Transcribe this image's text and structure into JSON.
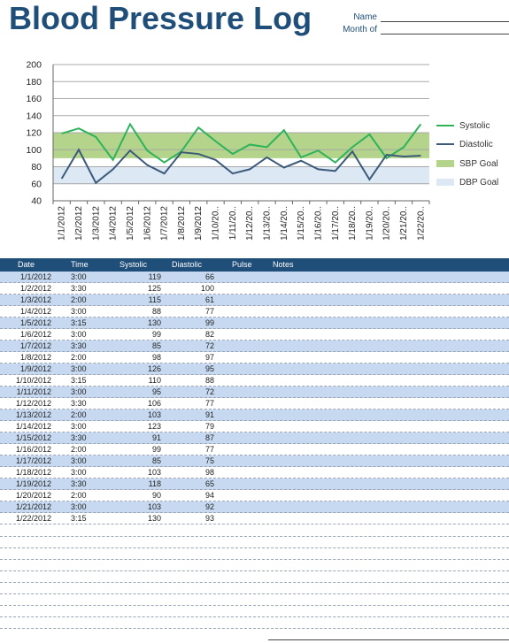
{
  "title": "Blood Pressure Log",
  "meta": {
    "name_label": "Name",
    "month_label": "Month of"
  },
  "colors": {
    "systolic": "#2fb35a",
    "diastolic": "#3d5a7a",
    "sbp_goal": "#b3d48a",
    "dbp_goal": "#dce9f5",
    "header": "#1f4e79",
    "row_shade": "#c6d9f1"
  },
  "table": {
    "headers": [
      "Date",
      "Time",
      "Systolic",
      "Diastolic",
      "Pulse",
      "Notes"
    ],
    "rows": [
      {
        "date": "1/1/2012",
        "time": "3:00",
        "systolic": "119",
        "diastolic": "66"
      },
      {
        "date": "1/2/2012",
        "time": "3:30",
        "systolic": "125",
        "diastolic": "100"
      },
      {
        "date": "1/3/2012",
        "time": "2:00",
        "systolic": "115",
        "diastolic": "61"
      },
      {
        "date": "1/4/2012",
        "time": "3:00",
        "systolic": "88",
        "diastolic": "77"
      },
      {
        "date": "1/5/2012",
        "time": "3:15",
        "systolic": "130",
        "diastolic": "99"
      },
      {
        "date": "1/6/2012",
        "time": "3:00",
        "systolic": "99",
        "diastolic": "82"
      },
      {
        "date": "1/7/2012",
        "time": "3:30",
        "systolic": "85",
        "diastolic": "72"
      },
      {
        "date": "1/8/2012",
        "time": "2:00",
        "systolic": "98",
        "diastolic": "97"
      },
      {
        "date": "1/9/2012",
        "time": "3:00",
        "systolic": "126",
        "diastolic": "95"
      },
      {
        "date": "1/10/2012",
        "time": "3:15",
        "systolic": "110",
        "diastolic": "88"
      },
      {
        "date": "1/11/2012",
        "time": "3:00",
        "systolic": "95",
        "diastolic": "72"
      },
      {
        "date": "1/12/2012",
        "time": "3:30",
        "systolic": "106",
        "diastolic": "77"
      },
      {
        "date": "1/13/2012",
        "time": "2:00",
        "systolic": "103",
        "diastolic": "91"
      },
      {
        "date": "1/14/2012",
        "time": "3:00",
        "systolic": "123",
        "diastolic": "79"
      },
      {
        "date": "1/15/2012",
        "time": "3:30",
        "systolic": "91",
        "diastolic": "87"
      },
      {
        "date": "1/16/2012",
        "time": "2:00",
        "systolic": "99",
        "diastolic": "77"
      },
      {
        "date": "1/17/2012",
        "time": "3:00",
        "systolic": "85",
        "diastolic": "75"
      },
      {
        "date": "1/18/2012",
        "time": "3:00",
        "systolic": "103",
        "diastolic": "98"
      },
      {
        "date": "1/19/2012",
        "time": "3:30",
        "systolic": "118",
        "diastolic": "65"
      },
      {
        "date": "1/20/2012",
        "time": "2:00",
        "systolic": "90",
        "diastolic": "94"
      },
      {
        "date": "1/21/2012",
        "time": "3:00",
        "systolic": "103",
        "diastolic": "92"
      },
      {
        "date": "1/22/2012",
        "time": "3:15",
        "systolic": "130",
        "diastolic": "93"
      }
    ]
  },
  "chart_data": {
    "type": "line",
    "categories": [
      "1/1/2012",
      "1/2/2012",
      "1/3/2012",
      "1/4/2012",
      "1/5/2012",
      "1/6/2012",
      "1/7/2012",
      "1/8/2012",
      "1/9/2012",
      "1/10/20..",
      "1/11/20..",
      "1/12/20..",
      "1/13/20..",
      "1/14/20..",
      "1/15/20..",
      "1/16/20..",
      "1/17/20..",
      "1/18/20..",
      "1/19/20..",
      "1/20/20..",
      "1/21/20..",
      "1/22/20.."
    ],
    "series": [
      {
        "name": "Systolic",
        "values": [
          119,
          125,
          115,
          88,
          130,
          99,
          85,
          98,
          126,
          110,
          95,
          106,
          103,
          123,
          91,
          99,
          85,
          103,
          118,
          90,
          103,
          130
        ]
      },
      {
        "name": "Diastolic",
        "values": [
          66,
          100,
          61,
          77,
          99,
          82,
          72,
          97,
          95,
          88,
          72,
          77,
          91,
          79,
          87,
          77,
          75,
          98,
          65,
          94,
          92,
          93
        ]
      }
    ],
    "bands": [
      {
        "name": "SBP Goal",
        "from": 90,
        "to": 120
      },
      {
        "name": "DBP Goal",
        "from": 60,
        "to": 80
      }
    ],
    "ylim": [
      40,
      200
    ],
    "yticks": [
      40,
      60,
      80,
      100,
      120,
      140,
      160,
      180,
      200
    ],
    "grid": true,
    "legend": "right"
  }
}
